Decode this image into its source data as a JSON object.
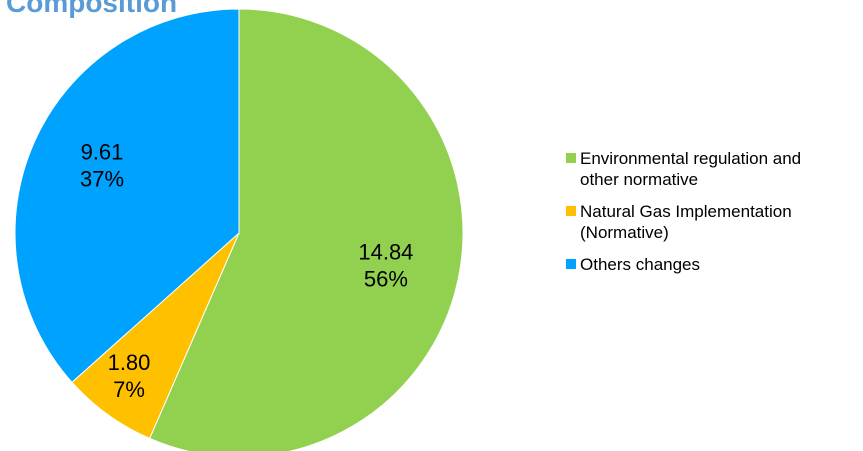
{
  "chart_data": {
    "type": "pie",
    "title": "Composition",
    "slices": [
      {
        "name": "Environmental regulation and other normative",
        "value": 14.84,
        "value_label": "14.84",
        "percent_label": "56%",
        "color": "#92d050"
      },
      {
        "name": "Natural Gas Implementation (Normative)",
        "value": 1.8,
        "value_label": "1.80",
        "percent_label": "7%",
        "color": "#ffc000"
      },
      {
        "name": "Others changes",
        "value": 9.61,
        "value_label": "9.61",
        "percent_label": "37%",
        "color": "#00a2ff"
      }
    ],
    "legend_position": "right"
  }
}
